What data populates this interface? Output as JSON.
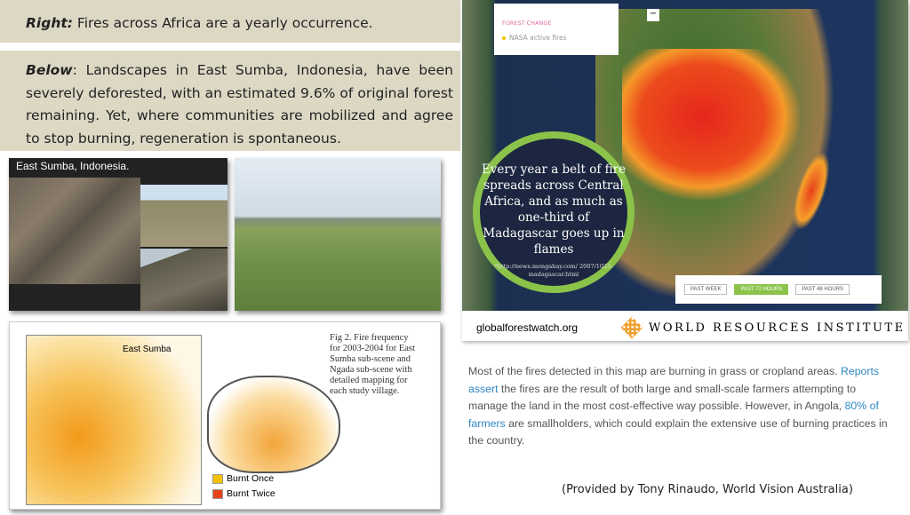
{
  "right_caption": {
    "label": "Right:",
    "text": " Fires across Africa are a yearly occurrence."
  },
  "below_caption": {
    "label": "Below",
    "text": ": Landscapes in East Sumba, Indonesia, have been severely deforested, with an estimated 9.6% of original forest remaining. Yet, where communities are mobilized and agree to stop burning, regeneration is spontaneous."
  },
  "photo1": {
    "caption": "East Sumba, Indonesia."
  },
  "figure": {
    "map_title": "East Sumba",
    "caption": "Fig 2. Fire frequency for 2003-2004 for East Sumba sub-scene and Ngada sub-scene with detailed mapping for each study village.",
    "legend": [
      {
        "label": "Burnt Once",
        "color": "#f2c200"
      },
      {
        "label": "Burnt Twice",
        "color": "#e8421c"
      }
    ]
  },
  "map": {
    "legend_title": "FOREST CHANGE",
    "legend_item": "NASA active fires",
    "minimize": "−",
    "circle_text": "Every year a belt of fire spreads across Central Africa, and as much as one-third of Madagascar goes up in flames",
    "circle_source": "*http://news.mongabay.com/ 2007/1025-madagascar.html",
    "buttons": [
      {
        "label": "PAST WEEK",
        "active": false
      },
      {
        "label": "PAST 72 HOURS",
        "active": true
      },
      {
        "label": "PAST 48 HOURS",
        "active": false
      }
    ],
    "site": "globalforestwatch.org",
    "org": "WORLD RESOURCES INSTITUTE",
    "accent": "#8bc34a"
  },
  "description": {
    "p1": "Most of the fires detected in this map are burning in grass or cropland areas. ",
    "link1": "Reports assert",
    "p2": " the fires are the result of both large and small-scale farmers attempting to manage the land in the most cost-effective way possible. However, in Angola, ",
    "link2": "80% of farmers",
    "p3": " are smallholders, which could explain the extensive use of burning practices in the country."
  },
  "credit": "(Provided by Tony Rinaudo, World Vision Australia)"
}
